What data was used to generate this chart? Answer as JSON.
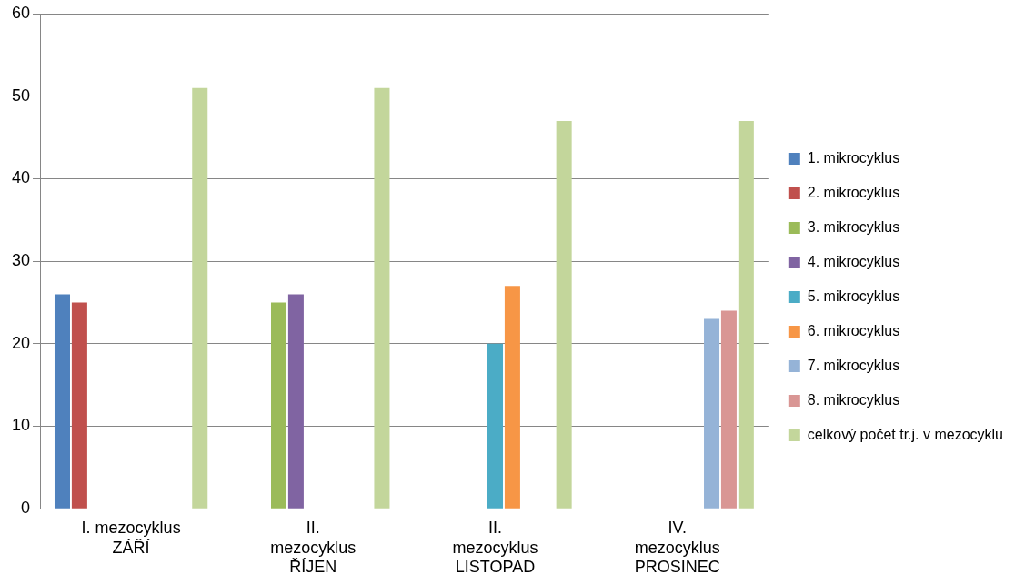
{
  "chart_data": {
    "type": "bar",
    "categories": [
      "I. mezocyklus ZÁŘÍ",
      "II. mezocyklus ŘÍJEN",
      "II. mezocyklus LISTOPAD",
      "IV. mezocyklus PROSINEC"
    ],
    "series": [
      {
        "name": "1. mikrocyklus",
        "color": "#4f81bd",
        "values": [
          26,
          0,
          0,
          0
        ]
      },
      {
        "name": "2. mikrocyklus",
        "color": "#c0504d",
        "values": [
          25,
          0,
          0,
          0
        ]
      },
      {
        "name": "3. mikrocyklus",
        "color": "#9bbb59",
        "values": [
          0,
          25,
          0,
          0
        ]
      },
      {
        "name": "4. mikrocyklus",
        "color": "#8064a2",
        "values": [
          0,
          26,
          0,
          0
        ]
      },
      {
        "name": "5. mikrocyklus",
        "color": "#4bacc6",
        "values": [
          0,
          0,
          20,
          0
        ]
      },
      {
        "name": "6. mikrocyklus",
        "color": "#f79646",
        "values": [
          0,
          0,
          27,
          0
        ]
      },
      {
        "name": "7. mikrocyklus",
        "color": "#95b3d7",
        "values": [
          0,
          0,
          0,
          23
        ]
      },
      {
        "name": "8. mikrocyklus",
        "color": "#d99694",
        "values": [
          0,
          0,
          0,
          24
        ]
      },
      {
        "name": "celkový počet tr.j. v mezocyklu",
        "color": "#c3d69b",
        "values": [
          51,
          51,
          47,
          47
        ]
      }
    ],
    "ylim": [
      0,
      60
    ],
    "yticks": [
      0,
      10,
      20,
      30,
      40,
      50,
      60
    ],
    "grid": "y",
    "legend": "right"
  }
}
